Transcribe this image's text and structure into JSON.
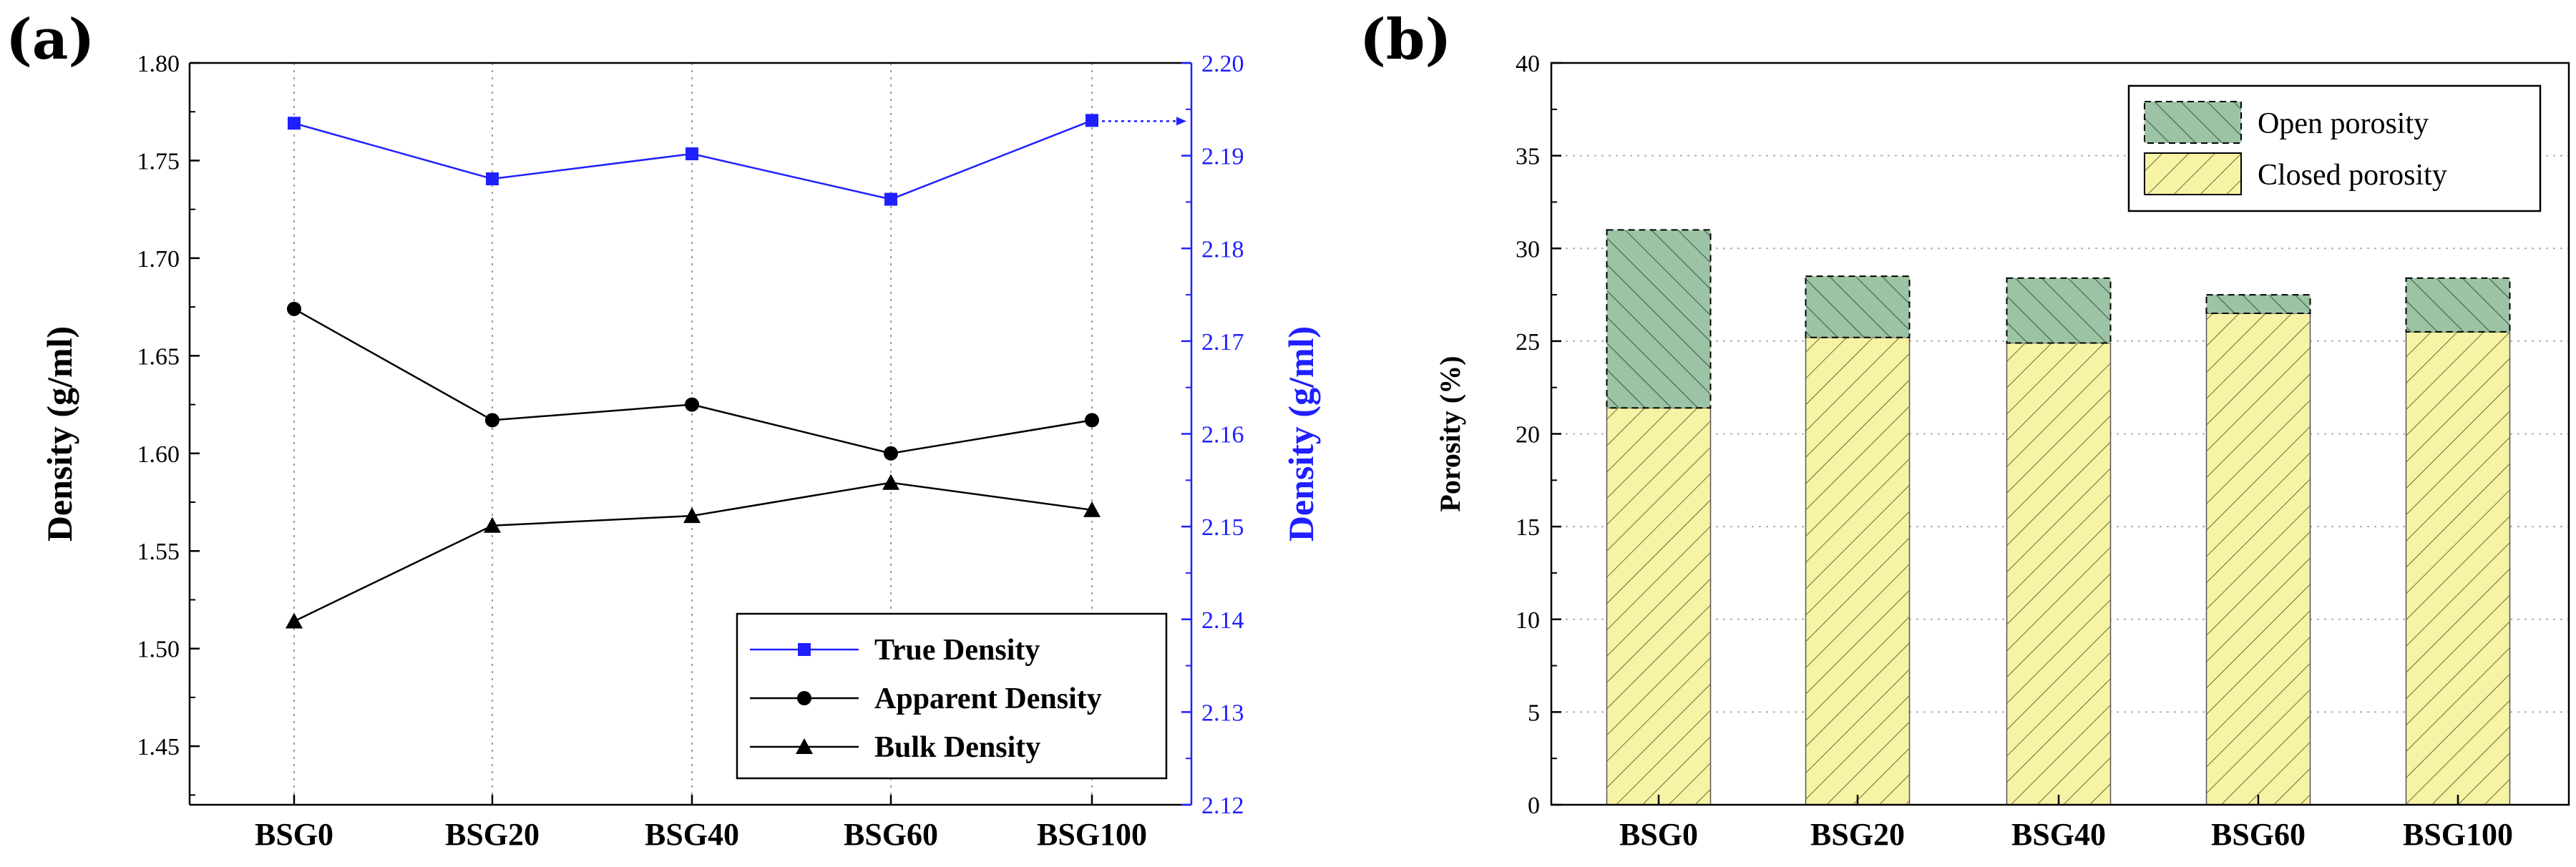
{
  "chart_data": [
    {
      "panel": "(a)",
      "type": "line",
      "categories": [
        "BSG0",
        "BSG20",
        "BSG40",
        "BSG60",
        "BSG100"
      ],
      "ylabel": "Density (g/ml)",
      "ylabel_right": "Density (g/ml)",
      "ylim": [
        1.42,
        1.8
      ],
      "ylim_right": [
        2.12,
        2.2
      ],
      "yticks": [
        "1.45",
        "1.50",
        "1.55",
        "1.60",
        "1.65",
        "1.70",
        "1.75",
        "1.80"
      ],
      "yticks_right": [
        "2.12",
        "2.13",
        "2.14",
        "2.15",
        "2.16",
        "2.17",
        "2.18",
        "2.19",
        "2.20"
      ],
      "grid": "vertical dotted",
      "legend_position": "bottom-right",
      "series": [
        {
          "name": "True Density",
          "axis": "right",
          "marker": "square",
          "color": "#2020ff",
          "values": [
            2.1935,
            2.1875,
            2.1902,
            2.1853,
            2.1938
          ]
        },
        {
          "name": "Apparent Density",
          "axis": "left",
          "marker": "circle",
          "color": "#000000",
          "values": [
            1.674,
            1.617,
            1.625,
            1.6,
            1.617
          ]
        },
        {
          "name": "Bulk Density",
          "axis": "left",
          "marker": "triangle",
          "color": "#000000",
          "values": [
            1.514,
            1.563,
            1.568,
            1.585,
            1.571
          ]
        }
      ]
    },
    {
      "panel": "(b)",
      "type": "bar",
      "stacked": true,
      "categories": [
        "BSG0",
        "BSG20",
        "BSG40",
        "BSG60",
        "BSG100"
      ],
      "ylabel": "Porosity (%)",
      "ylim": [
        0,
        40
      ],
      "yticks": [
        "0",
        "5",
        "10",
        "15",
        "20",
        "25",
        "30",
        "35",
        "40"
      ],
      "grid": "horizontal dotted",
      "legend_position": "top-right",
      "series": [
        {
          "name": "Closed porosity",
          "color": "#f7f3a4",
          "values": [
            21.4,
            25.2,
            24.9,
            26.5,
            25.5
          ]
        },
        {
          "name": "Open porosity",
          "color": "#9cc4a4",
          "values": [
            9.6,
            3.3,
            3.5,
            1.0,
            2.9
          ]
        }
      ]
    }
  ]
}
